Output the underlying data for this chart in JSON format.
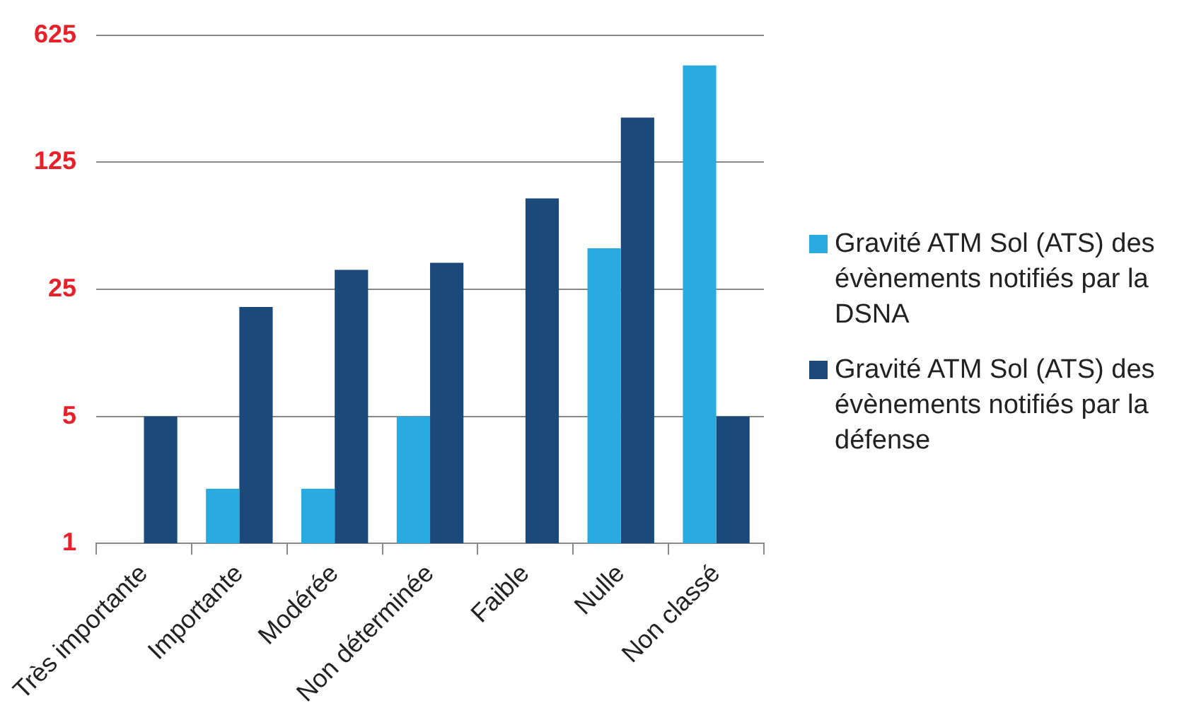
{
  "chart_data": {
    "type": "bar",
    "categories": [
      "Très importante",
      "Importante",
      "Modérée",
      "Non déterminée",
      "Faible",
      "Nulle",
      "Non classé"
    ],
    "series": [
      {
        "name": "Gravité  ATM Sol (ATS) des évènements notifiés par la DSNA",
        "color": "#29abe2",
        "values": [
          null,
          2,
          2,
          5,
          null,
          42,
          426
        ]
      },
      {
        "name": "Gravité  ATM Sol (ATS) des évènements notifiés par la défense",
        "color": "#1b4a7a",
        "values": [
          5,
          20,
          32,
          35,
          79,
          220,
          5
        ]
      }
    ],
    "log": "y",
    "ylim": [
      1,
      625
    ],
    "yticks": [
      1,
      5,
      25,
      125,
      625
    ],
    "grid": "y",
    "legend": "right"
  }
}
